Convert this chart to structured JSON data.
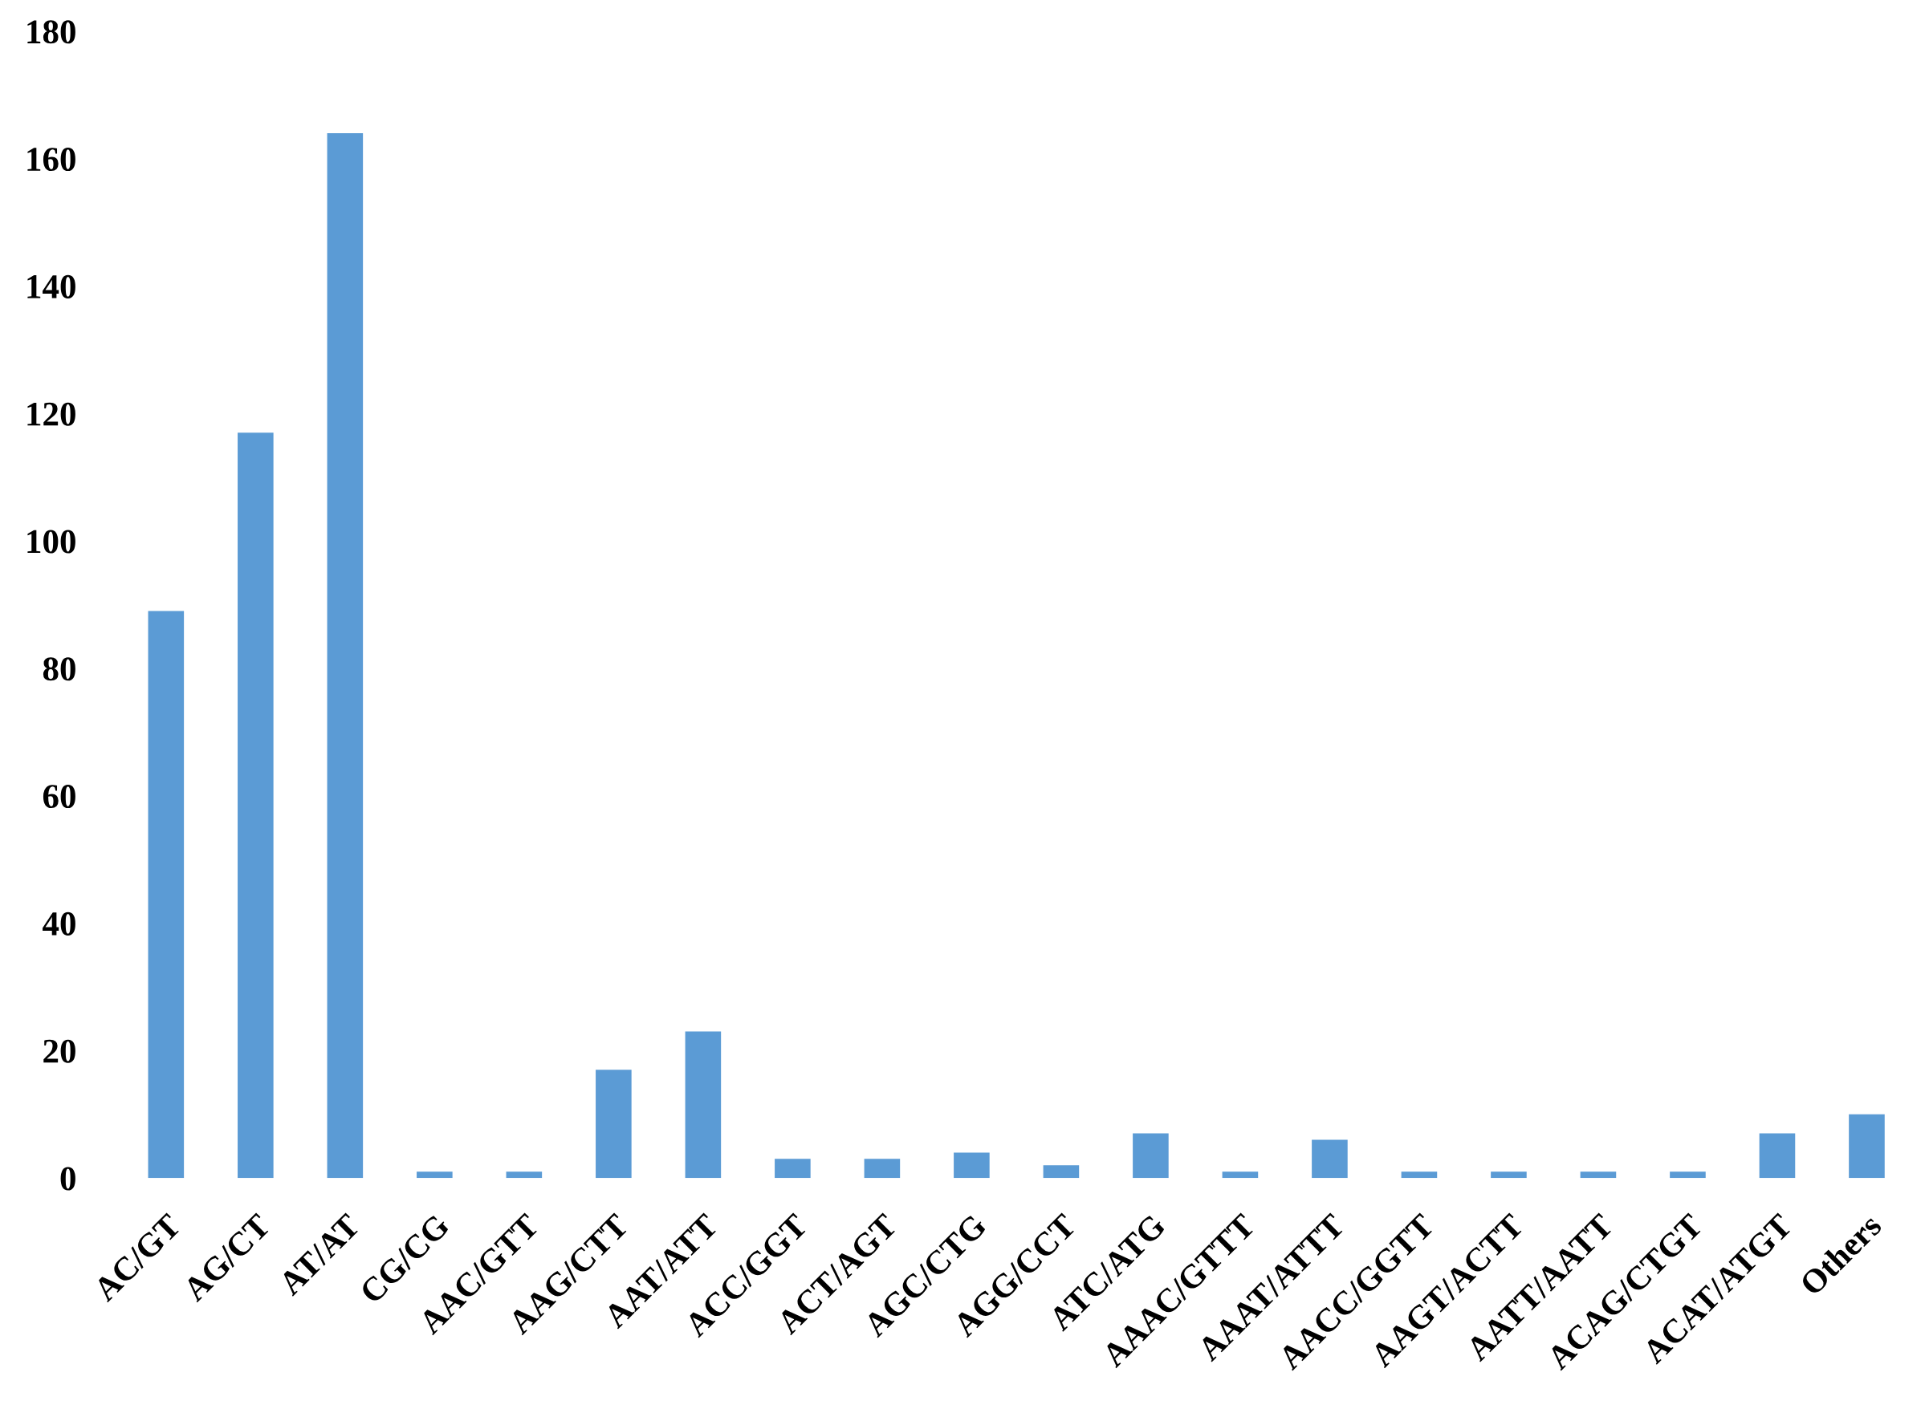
{
  "chart_data": {
    "type": "bar",
    "categories": [
      "AC/GT",
      "AG/CT",
      "AT/AT",
      "CG/CG",
      "AAC/GTT",
      "AAG/CTT",
      "AAT/ATT",
      "ACC/GGT",
      "ACT/AGT",
      "AGC/CTG",
      "AGG/CCT",
      "ATC/ATG",
      "AAAC/GTTT",
      "AAAT/ATTT",
      "AACC/GGTT",
      "AAGT/ACTT",
      "AATT/AATT",
      "ACAG/CTGT",
      "ACAT/ATGT",
      "Others"
    ],
    "values": [
      89,
      117,
      164,
      1,
      1,
      17,
      23,
      3,
      3,
      4,
      2,
      7,
      1,
      6,
      1,
      1,
      1,
      1,
      7,
      10
    ],
    "color": "#5b9bd5",
    "ylim": [
      0,
      180
    ],
    "yticks": [
      0,
      20,
      40,
      60,
      80,
      100,
      120,
      140,
      160,
      180
    ]
  }
}
